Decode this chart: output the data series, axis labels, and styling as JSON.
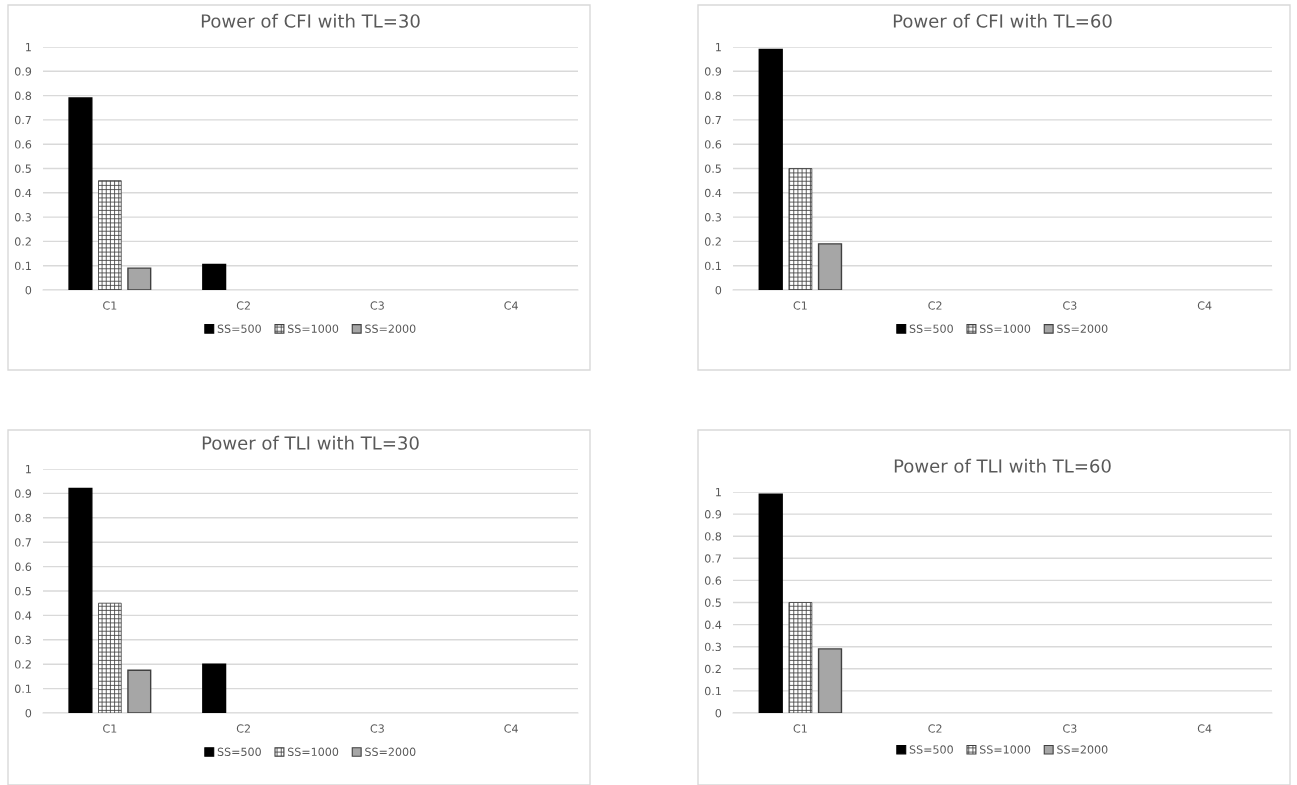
{
  "chart_data": [
    {
      "type": "bar",
      "title": "Power of CFI with TL=30",
      "categories": [
        "C1",
        "C2",
        "C3",
        "C4"
      ],
      "series": [
        {
          "name": "SS=500",
          "color": "#000000",
          "values": [
            0.79,
            0.105,
            null,
            null
          ]
        },
        {
          "name": "SS=1000",
          "color": "#404040",
          "values": [
            0.45,
            null,
            null,
            null
          ]
        },
        {
          "name": "SS=2000",
          "color": "#a6a6a6",
          "values": [
            0.09,
            null,
            null,
            null
          ]
        }
      ],
      "ylim": [
        0,
        1
      ],
      "yticks": [
        0,
        0.1,
        0.2,
        0.3,
        0.4,
        0.5,
        0.6,
        0.7,
        0.8,
        0.9,
        1
      ],
      "grid": "y",
      "legend": "bottom"
    },
    {
      "type": "bar",
      "title": "Power of CFI with TL=60",
      "categories": [
        "C1",
        "C2",
        "C3",
        "C4"
      ],
      "series": [
        {
          "name": "SS=500",
          "color": "#000000",
          "values": [
            0.99,
            null,
            null,
            null
          ]
        },
        {
          "name": "SS=1000",
          "color": "#404040",
          "values": [
            0.5,
            null,
            null,
            null
          ]
        },
        {
          "name": "SS=2000",
          "color": "#a6a6a6",
          "values": [
            0.19,
            null,
            null,
            null
          ]
        }
      ],
      "ylim": [
        0,
        1
      ],
      "yticks": [
        0,
        0.1,
        0.2,
        0.3,
        0.4,
        0.5,
        0.6,
        0.7,
        0.8,
        0.9,
        1
      ],
      "grid": "y",
      "legend": "bottom"
    },
    {
      "type": "bar",
      "title": "Power of TLI with TL=30",
      "categories": [
        "C1",
        "C2",
        "C3",
        "C4"
      ],
      "series": [
        {
          "name": "SS=500",
          "color": "#000000",
          "values": [
            0.92,
            0.2,
            null,
            null
          ]
        },
        {
          "name": "SS=1000",
          "color": "#404040",
          "values": [
            0.45,
            null,
            null,
            null
          ]
        },
        {
          "name": "SS=2000",
          "color": "#a6a6a6",
          "values": [
            0.175,
            null,
            null,
            null
          ]
        }
      ],
      "ylim": [
        0,
        1
      ],
      "yticks": [
        0,
        0.1,
        0.2,
        0.3,
        0.4,
        0.5,
        0.6,
        0.7,
        0.8,
        0.9,
        1
      ],
      "grid": "y",
      "legend": "bottom"
    },
    {
      "type": "bar",
      "title": "Power of TLI with TL=60",
      "categories": [
        "C1",
        "C2",
        "C3",
        "C4"
      ],
      "series": [
        {
          "name": "SS=500",
          "color": "#000000",
          "values": [
            0.99,
            null,
            null,
            null
          ]
        },
        {
          "name": "SS=1000",
          "color": "#404040",
          "values": [
            0.5,
            null,
            null,
            null
          ]
        },
        {
          "name": "SS=2000",
          "color": "#a6a6a6",
          "values": [
            0.29,
            null,
            null,
            null
          ]
        }
      ],
      "ylim": [
        0,
        1
      ],
      "yticks": [
        0,
        0.1,
        0.2,
        0.3,
        0.4,
        0.5,
        0.6,
        0.7,
        0.8,
        0.9,
        1
      ],
      "grid": "y",
      "legend": "bottom"
    }
  ]
}
